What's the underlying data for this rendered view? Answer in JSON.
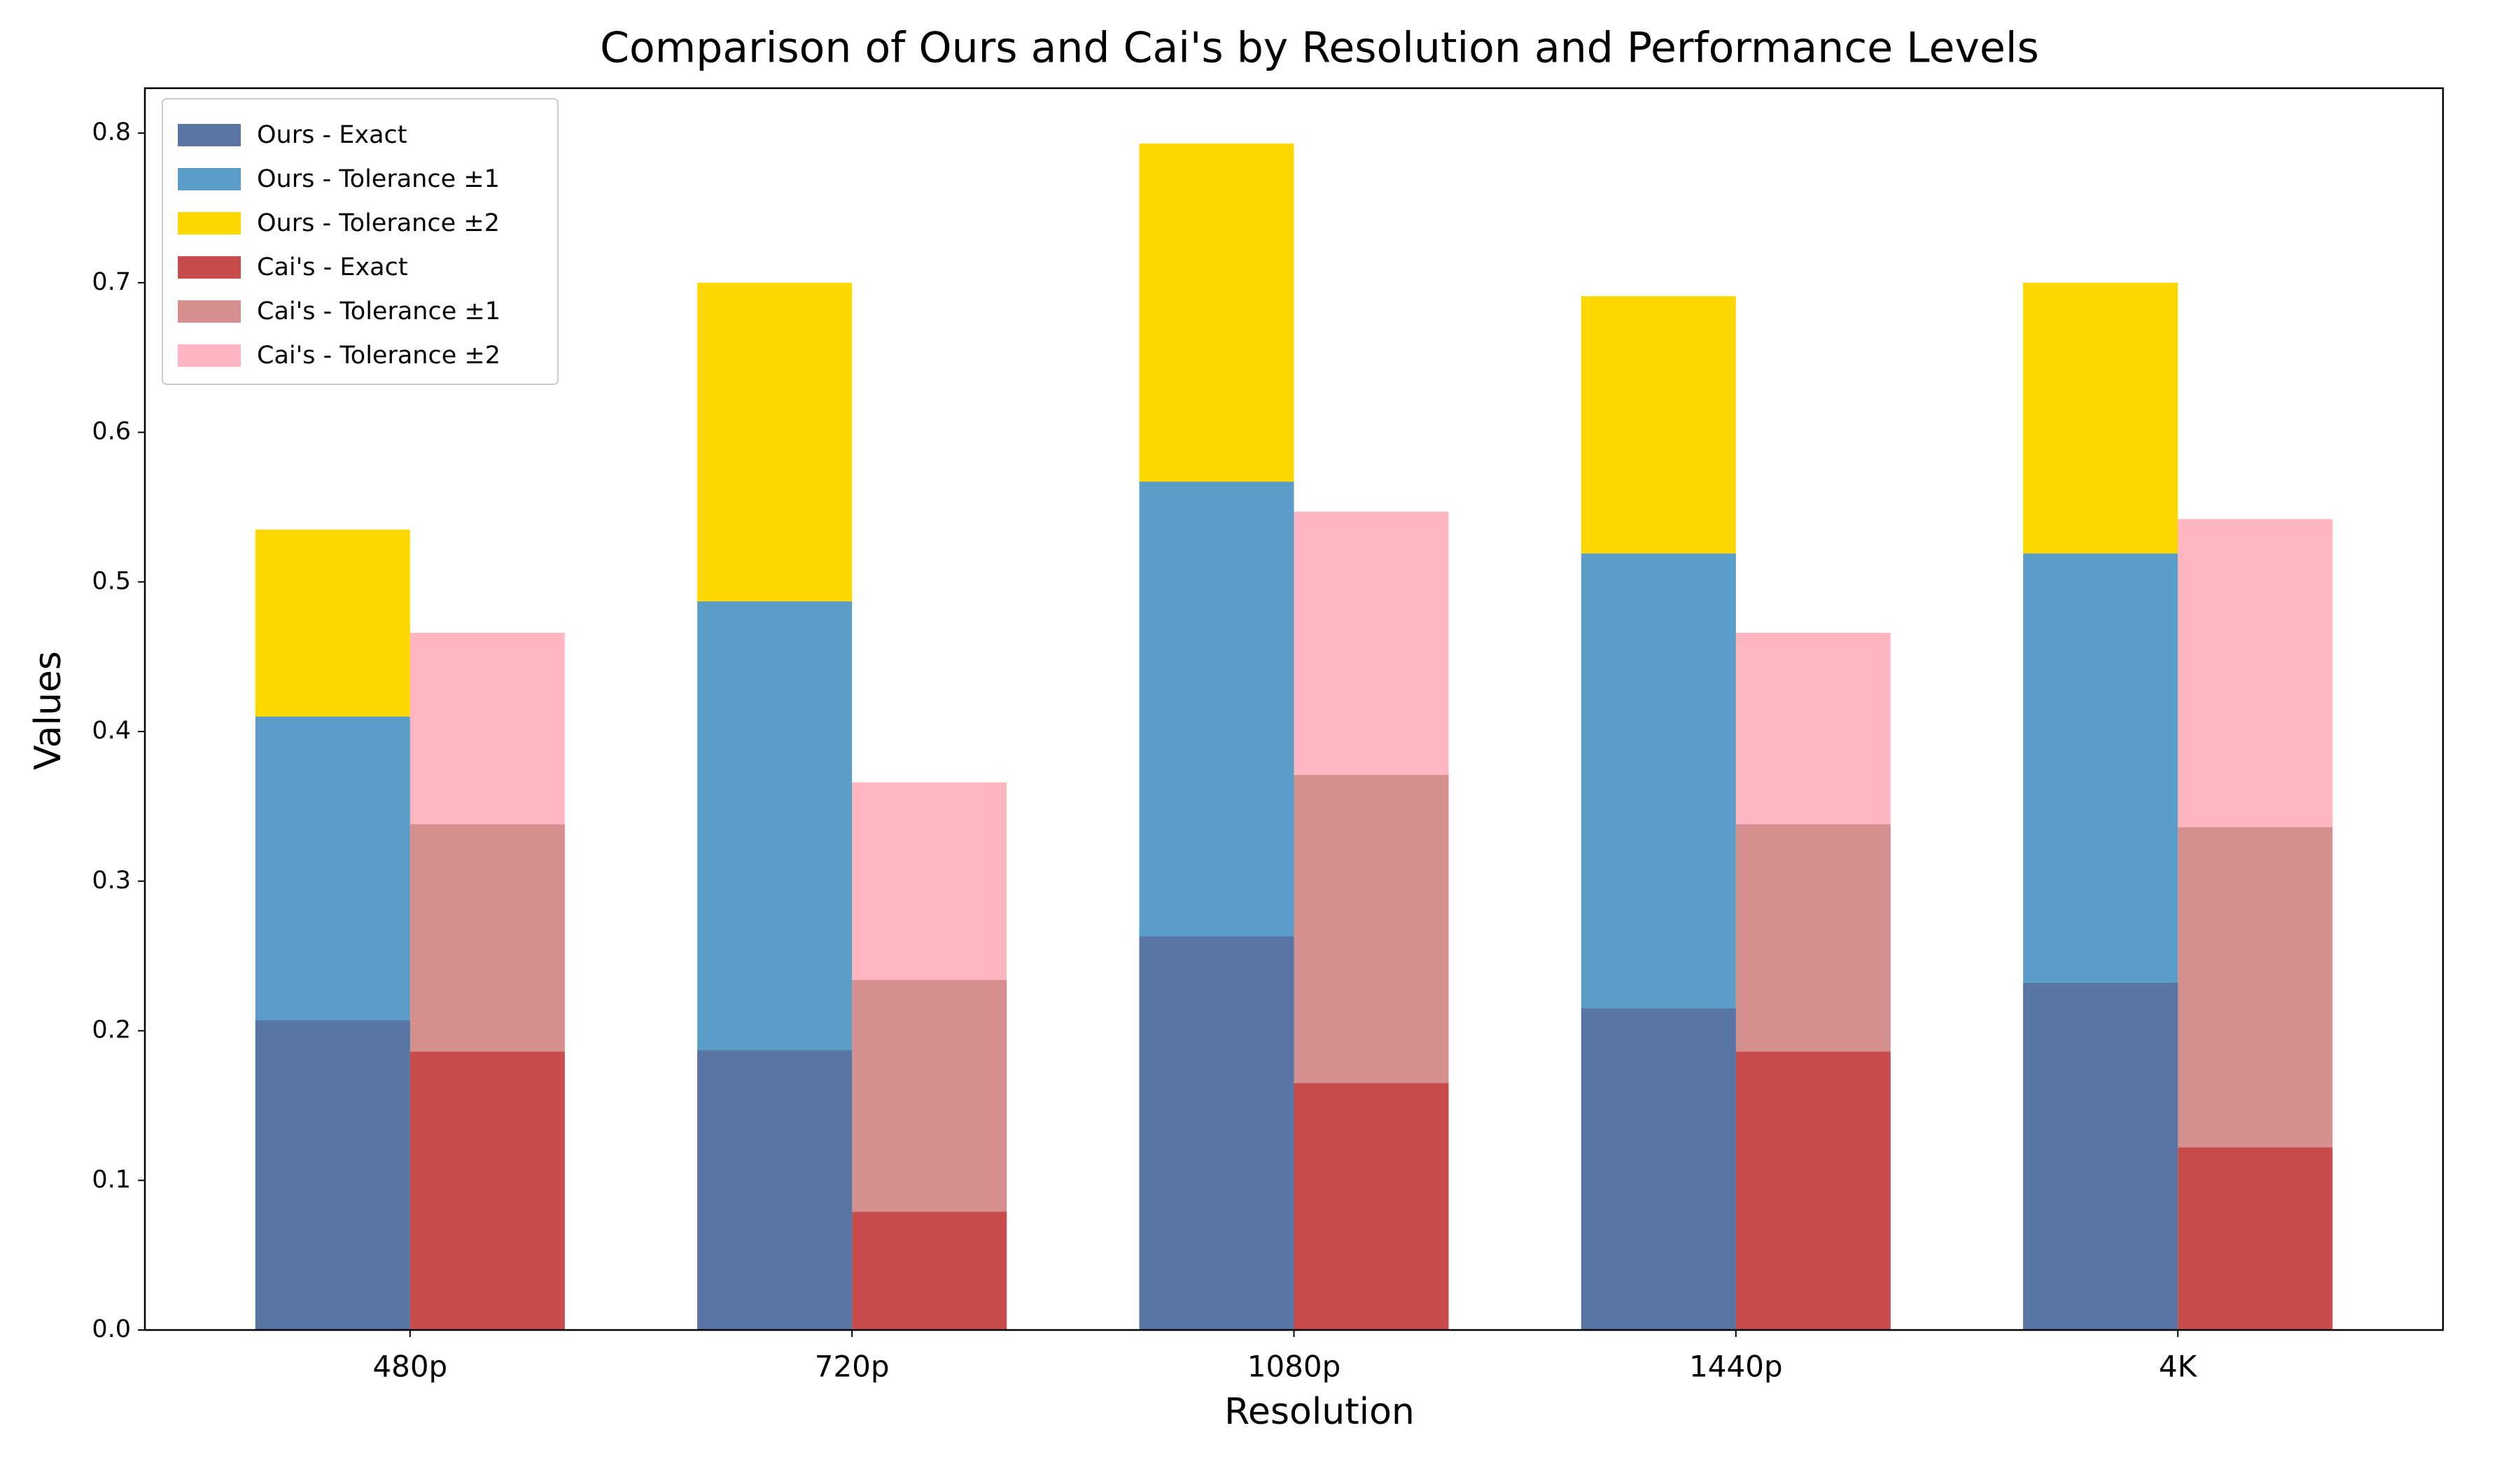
{
  "chart_data": {
    "type": "bar",
    "title": "Comparison of Ours and Cai's by Resolution and Performance Levels",
    "x_label": "Resolution",
    "y_label": "Values",
    "categories": [
      "480p",
      "720p",
      "1080p",
      "1440p",
      "4K"
    ],
    "series": [
      {
        "name": "Ours - Exact",
        "color": "#5975a4",
        "values": [
          0.207,
          0.187,
          0.263,
          0.215,
          0.232
        ]
      },
      {
        "name": "Ours - Tolerance ±1",
        "color": "#5b9dc9",
        "values": [
          0.41,
          0.487,
          0.567,
          0.519,
          0.519
        ]
      },
      {
        "name": "Ours - Tolerance ±2",
        "color": "#ffd700",
        "values": [
          0.535,
          0.7,
          0.793,
          0.691,
          0.7
        ]
      },
      {
        "name": "Cai's - Exact",
        "color": "#c94c4c",
        "values": [
          0.186,
          0.079,
          0.165,
          0.186,
          0.122
        ]
      },
      {
        "name": "Cai's - Tolerance ±1",
        "color": "#d68f8f",
        "values": [
          0.338,
          0.234,
          0.371,
          0.338,
          0.336
        ]
      },
      {
        "name": "Cai's - Tolerance ±2",
        "color": "#ffb6c1",
        "values": [
          0.466,
          0.366,
          0.547,
          0.466,
          0.542
        ]
      }
    ],
    "ylim": [
      0,
      0.83
    ],
    "yticks": [
      {
        "value": 0,
        "label": "0.0"
      },
      0.1,
      0.2,
      0.3,
      0.4,
      0.5,
      0.6,
      0.7,
      0.8
    ],
    "legend": "upper left",
    "grid": false
  }
}
